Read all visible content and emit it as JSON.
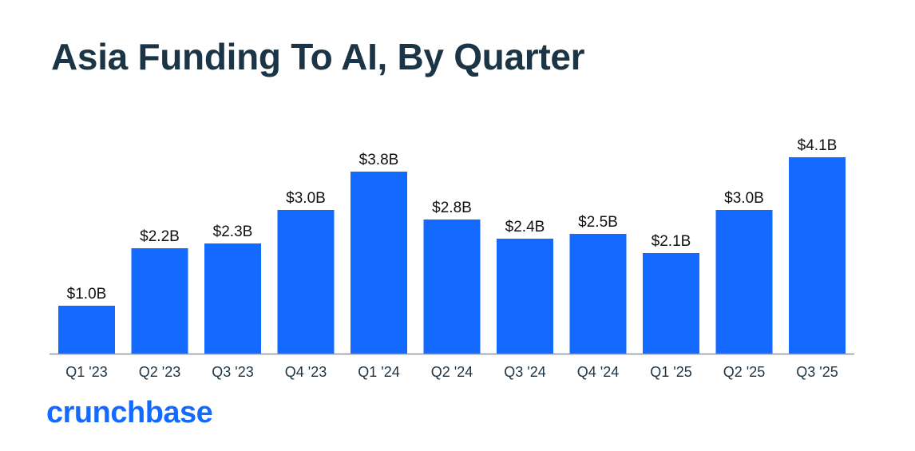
{
  "chart_data": {
    "type": "bar",
    "title": "Asia Funding To AI, By Quarter",
    "xlabel": "",
    "ylabel": "",
    "categories": [
      "Q1 '23",
      "Q2 '23",
      "Q3 '23",
      "Q4 '23",
      "Q1 '24",
      "Q2 '24",
      "Q3 '24",
      "Q4 '24",
      "Q1 '25",
      "Q2 '25",
      "Q3 '25"
    ],
    "values": [
      1.0,
      2.2,
      2.3,
      3.0,
      3.8,
      2.8,
      2.4,
      2.5,
      2.1,
      3.0,
      4.1
    ],
    "data_labels": [
      "$1.0B",
      "$2.2B",
      "$2.3B",
      "$3.0B",
      "$3.8B",
      "$2.8B",
      "$2.4B",
      "$2.5B",
      "$2.1B",
      "$3.0B",
      "$4.1B"
    ],
    "unit": "USD billions",
    "ylim": [
      0,
      4.5
    ],
    "grid": false,
    "bar_color": "#146aff"
  },
  "brand": "crunchbase"
}
